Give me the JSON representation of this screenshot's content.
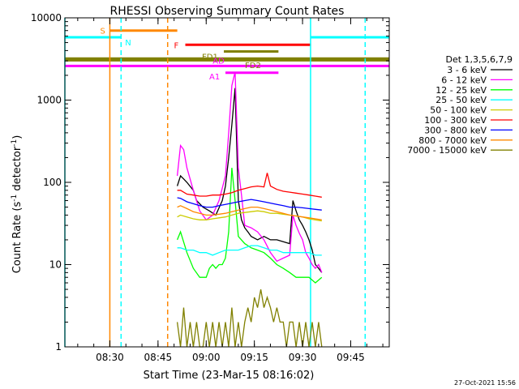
{
  "chart_data": {
    "type": "line",
    "title": "RHESSI Observing Summary Count Rates",
    "xlabel": "Start Time (23-Mar-15 08:16:02)",
    "ylabel_main": "Count Rate (s",
    "ylabel_sup1": "-1",
    "ylabel_mid": " detector",
    "ylabel_sup2": "-1",
    "ylabel_end": ")",
    "yscale": "log",
    "ylim": [
      1,
      10000
    ],
    "xlim_minutes": [
      0,
      101
    ],
    "x_ticks": [
      {
        "label": "08:30",
        "min": 14
      },
      {
        "label": "08:45",
        "min": 29
      },
      {
        "label": "09:00",
        "min": 44
      },
      {
        "label": "09:15",
        "min": 59
      },
      {
        "label": "09:30",
        "min": 74
      },
      {
        "label": "09:45",
        "min": 89
      }
    ],
    "y_ticks": [
      {
        "label": "1",
        "value": 1
      },
      {
        "label": "10",
        "value": 10
      },
      {
        "label": "100",
        "value": 100
      },
      {
        "label": "1000",
        "value": 1000
      },
      {
        "label": "10000",
        "value": 10000
      }
    ],
    "legend_title": "Det 1,3,5,6,7,9",
    "legend_placement": "right",
    "series": [
      {
        "name": "3 - 6 keV",
        "color": "#000000",
        "x": [
          35,
          36,
          37,
          38,
          40,
          41,
          43,
          45,
          47,
          49,
          50,
          51,
          52,
          53,
          54,
          55,
          56,
          57,
          58,
          60,
          62,
          64,
          66,
          68,
          70,
          71,
          72,
          73,
          74,
          75,
          76,
          77,
          78,
          79,
          80
        ],
        "y": [
          90,
          120,
          110,
          100,
          80,
          60,
          50,
          45,
          40,
          60,
          90,
          200,
          500,
          1400,
          60,
          35,
          28,
          25,
          22,
          20,
          22,
          20,
          20,
          19,
          18,
          60,
          45,
          35,
          30,
          25,
          20,
          15,
          10,
          9,
          8
        ]
      },
      {
        "name": "6 - 12 keV",
        "color": "#ff00ff",
        "x": [
          35,
          36,
          37,
          38,
          40,
          42,
          44,
          46,
          48,
          50,
          51,
          52,
          53,
          54,
          55,
          56,
          58,
          60,
          62,
          64,
          66,
          68,
          70,
          71,
          72,
          73,
          74,
          75,
          76,
          77,
          78,
          79,
          80
        ],
        "y": [
          120,
          280,
          250,
          150,
          80,
          45,
          35,
          40,
          60,
          120,
          400,
          1500,
          2200,
          150,
          70,
          30,
          28,
          25,
          20,
          14,
          11,
          12,
          13,
          40,
          30,
          24,
          20,
          14,
          12,
          10,
          9,
          10,
          8
        ]
      },
      {
        "name": "12 - 25 keV",
        "color": "#00ff00",
        "x": [
          35,
          36,
          38,
          40,
          42,
          44,
          45,
          46,
          47,
          48,
          49,
          50,
          51,
          52,
          53,
          54,
          56,
          58,
          60,
          62,
          64,
          66,
          68,
          70,
          72,
          74,
          76,
          78,
          80
        ],
        "y": [
          20,
          25,
          14,
          9,
          7,
          7,
          9,
          10,
          9,
          10,
          10,
          12,
          25,
          150,
          60,
          22,
          18,
          16,
          15,
          14,
          12,
          10,
          9,
          8,
          7,
          7,
          7,
          6,
          7
        ]
      },
      {
        "name": "25 - 50 keV",
        "color": "#00ffff",
        "x": [
          35,
          36,
          38,
          40,
          42,
          44,
          46,
          48,
          50,
          52,
          54,
          56,
          58,
          60,
          62,
          64,
          66,
          68,
          70,
          72,
          74,
          76,
          78,
          80
        ],
        "y": [
          16,
          16,
          15,
          15,
          14,
          14,
          13,
          14,
          15,
          15,
          15,
          16,
          17,
          17,
          16,
          15,
          15,
          14,
          14,
          14,
          14,
          14,
          13,
          13
        ]
      },
      {
        "name": "50 - 100 keV",
        "color": "#cccc00",
        "x": [
          35,
          36,
          38,
          40,
          42,
          44,
          46,
          48,
          50,
          52,
          54,
          56,
          58,
          60,
          62,
          64,
          66,
          68,
          70,
          72,
          74,
          76,
          78,
          80
        ],
        "y": [
          38,
          40,
          38,
          36,
          35,
          35,
          36,
          37,
          38,
          40,
          42,
          43,
          44,
          45,
          44,
          42,
          42,
          41,
          40,
          39,
          38,
          36,
          35,
          34
        ]
      },
      {
        "name": "100 - 300 keV",
        "color": "#ff0000",
        "x": [
          35,
          36,
          38,
          40,
          42,
          44,
          46,
          48,
          50,
          52,
          54,
          56,
          58,
          60,
          62,
          63,
          64,
          66,
          68,
          70,
          72,
          74,
          76,
          78,
          80
        ],
        "y": [
          80,
          80,
          72,
          70,
          68,
          68,
          70,
          70,
          72,
          75,
          80,
          84,
          88,
          90,
          88,
          130,
          90,
          82,
          78,
          76,
          74,
          72,
          70,
          68,
          66
        ]
      },
      {
        "name": "300 - 800 keV",
        "color": "#0000ff",
        "x": [
          35,
          36,
          38,
          40,
          42,
          44,
          46,
          48,
          50,
          52,
          54,
          56,
          58,
          60,
          62,
          64,
          66,
          68,
          70,
          72,
          74,
          76,
          78,
          80
        ],
        "y": [
          65,
          64,
          58,
          55,
          52,
          50,
          50,
          52,
          54,
          56,
          58,
          60,
          62,
          60,
          58,
          56,
          54,
          52,
          50,
          50,
          49,
          48,
          47,
          46
        ]
      },
      {
        "name": "800 - 7000 keV",
        "color": "#ff8800",
        "x": [
          35,
          36,
          38,
          40,
          42,
          44,
          46,
          48,
          50,
          52,
          54,
          56,
          58,
          60,
          62,
          64,
          66,
          68,
          70,
          72,
          74,
          76,
          78,
          80
        ],
        "y": [
          50,
          52,
          48,
          44,
          42,
          40,
          40,
          41,
          42,
          44,
          46,
          48,
          50,
          50,
          48,
          46,
          44,
          42,
          40,
          39,
          38,
          37,
          36,
          35
        ]
      },
      {
        "name": "7000 - 15000 keV",
        "color": "#808000",
        "x": [
          35,
          36,
          37,
          38,
          39,
          40,
          41,
          42,
          43,
          44,
          45,
          46,
          47,
          48,
          49,
          50,
          51,
          52,
          53,
          54,
          55,
          56,
          57,
          58,
          59,
          60,
          61,
          62,
          63,
          64,
          65,
          66,
          67,
          68,
          69,
          70,
          71,
          72,
          73,
          74,
          75,
          76,
          77,
          78,
          79,
          80
        ],
        "y": [
          2,
          1,
          3,
          1,
          2,
          1,
          2,
          1,
          1,
          2,
          1,
          2,
          1,
          2,
          1,
          2,
          1,
          3,
          1,
          2,
          1,
          2,
          3,
          2,
          4,
          3,
          5,
          3,
          4,
          3,
          2,
          3,
          2,
          2,
          1,
          2,
          2,
          1,
          2,
          1,
          2,
          1,
          2,
          1,
          2,
          1
        ]
      }
    ],
    "bars": [
      {
        "label": "S",
        "color": "#ff8800",
        "start": 14,
        "end": 35,
        "value": 7000
      },
      {
        "label": "N",
        "color": "#00ffff",
        "start": 0,
        "end": 17.5,
        "value": 5800
      },
      {
        "label": "F",
        "color": "#ff0000",
        "start": 37.5,
        "end": 76.5,
        "value": 4700
      },
      {
        "label": "FD1",
        "color": "#808000",
        "start": 49.5,
        "end": 66.5,
        "value": 3900
      },
      {
        "label": "FD2",
        "color": "#808000",
        "start": 0,
        "end": 101,
        "value": 3200
      },
      {
        "label": "AD",
        "color": "#ff00ff",
        "start": 0,
        "end": 101,
        "value": 2600
      },
      {
        "label": "A1",
        "color": "#ff00ff",
        "start": 50,
        "end": 66.5,
        "value": 2150
      }
    ],
    "bars_extra": [
      {
        "label": "",
        "color": "#808000",
        "start": 0,
        "end": 101,
        "value": 3050
      },
      {
        "label": "",
        "color": "#00ffff",
        "start": 76.5,
        "end": 101,
        "value": 5800
      }
    ],
    "vlines": [
      {
        "min": 14,
        "color": "#ff8800",
        "style": "solid"
      },
      {
        "min": 17.5,
        "color": "#00ffff",
        "style": "dashed"
      },
      {
        "min": 32,
        "color": "#ff8800",
        "style": "dashed"
      },
      {
        "min": 76.5,
        "color": "#00ffff",
        "style": "solid"
      },
      {
        "min": 93.5,
        "color": "#00ffff",
        "style": "dashed"
      },
      {
        "min": 0,
        "color": "#00ffff",
        "style": "solid"
      }
    ],
    "footer": "27-Oct-2021 15:56"
  }
}
